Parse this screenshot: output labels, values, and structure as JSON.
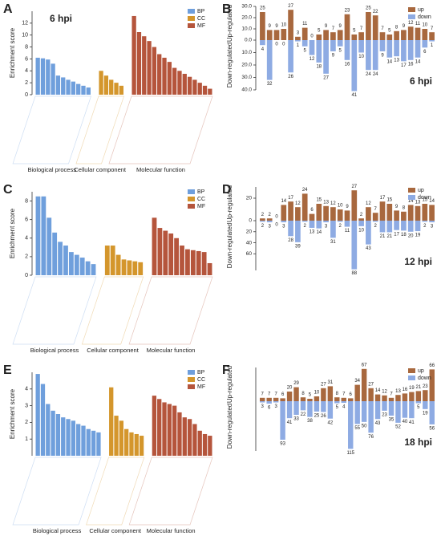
{
  "chart_data": [
    {
      "type": "enrichment",
      "panel": "A",
      "title": "6 hpi",
      "ylabel": "Enrichment score",
      "ylim": [
        0,
        14
      ],
      "yticks": [
        0,
        2,
        4,
        6,
        8,
        10,
        12
      ],
      "groups": [
        {
          "name": "BP",
          "label": "Biological process",
          "color": "#6f9fdc",
          "values": [
            6.2,
            6.1,
            5.9,
            5.2,
            3.2,
            2.9,
            2.5,
            2.2,
            1.8,
            1.5,
            1.2
          ]
        },
        {
          "name": "CC",
          "label": "Cellular component",
          "color": "#d4962c",
          "values": [
            4.0,
            3.2,
            2.5,
            2.0,
            1.5
          ]
        },
        {
          "name": "MF",
          "label": "Molecular function",
          "color": "#b5553c",
          "values": [
            13.2,
            10.5,
            9.8,
            9.0,
            8.0,
            6.8,
            6.2,
            5.5,
            4.5,
            4.0,
            3.5,
            3.0,
            2.5,
            2.0,
            1.5,
            1.0
          ]
        }
      ]
    },
    {
      "type": "updown",
      "panel": "B",
      "title": "6 hpi",
      "up_label": "Up-regulated",
      "down_label": "Down-regulated",
      "series": [
        {
          "name": "up",
          "color": "#a8683e",
          "ylim": [
            0,
            30
          ],
          "yticks": [
            {
              "value": 0,
              "label": "0.0"
            },
            {
              "value": 10,
              "label": "10.0"
            },
            {
              "value": 20,
              "label": "20.0"
            },
            {
              "value": 30,
              "label": "30.0"
            }
          ],
          "values": [
            25,
            9,
            9,
            10,
            27,
            3,
            11,
            0,
            5,
            9,
            7,
            9,
            23,
            5,
            7,
            25,
            22,
            7,
            5,
            8,
            9,
            12,
            11,
            10,
            7
          ]
        },
        {
          "name": "down",
          "color": "#8eabe3",
          "ylim": [
            0,
            40
          ],
          "yticks": [
            {
              "value": 10,
              "label": "10.0"
            },
            {
              "value": 20,
              "label": "20.0"
            },
            {
              "value": 30,
              "label": "30.0"
            },
            {
              "value": 40,
              "label": "40.0"
            }
          ],
          "values": [
            4,
            32,
            0,
            0,
            26,
            1,
            5,
            12,
            18,
            27,
            9,
            5,
            16,
            41,
            10,
            24,
            24,
            9,
            14,
            13,
            17,
            16,
            14,
            6,
            1
          ]
        }
      ]
    },
    {
      "type": "enrichment",
      "panel": "C",
      "ylabel": "Enrichment score",
      "ylim": [
        0,
        9
      ],
      "yticks": [
        0,
        2,
        4,
        6,
        8
      ],
      "groups": [
        {
          "name": "BP",
          "label": "Biological process",
          "color": "#6f9fdc",
          "values": [
            8.5,
            8.5,
            6.2,
            4.6,
            3.6,
            3.2,
            2.5,
            2.2,
            1.9,
            1.5,
            1.2
          ]
        },
        {
          "name": "CC",
          "label": "Cellular component",
          "color": "#d4962c",
          "values": [
            3.2,
            3.2,
            2.2,
            1.7,
            1.6,
            1.5,
            1.4
          ]
        },
        {
          "name": "MF",
          "label": "Molecular function",
          "color": "#b5553c",
          "values": [
            6.2,
            5.1,
            4.8,
            4.5,
            4.0,
            3.2,
            2.8,
            2.7,
            2.6,
            2.5,
            1.3
          ]
        }
      ]
    },
    {
      "type": "updown",
      "panel": "D",
      "title": "12 hpi",
      "up_label": "Up-regulated",
      "down_label": "Down-regulated",
      "series": [
        {
          "name": "up",
          "color": "#a8683e",
          "ylim": [
            0,
            30
          ],
          "yticks": [
            0,
            20
          ],
          "values": [
            2,
            2,
            0,
            14,
            17,
            12,
            24,
            6,
            15,
            13,
            12,
            10,
            9,
            27,
            2,
            12,
            7,
            17,
            15,
            9,
            8,
            14,
            13,
            15,
            14
          ]
        },
        {
          "name": "down",
          "color": "#8eabe3",
          "ylim": [
            0,
            90
          ],
          "yticks": [
            20,
            40,
            60
          ],
          "values": [
            2,
            3,
            0,
            3,
            28,
            39,
            2,
            13,
            14,
            3,
            31,
            2,
            11,
            88,
            10,
            43,
            2,
            21,
            21,
            17,
            18,
            20,
            19,
            2,
            3
          ]
        }
      ]
    },
    {
      "type": "enrichment",
      "panel": "E",
      "ylabel": "Enrichment score",
      "ylim": [
        0,
        5
      ],
      "yticks": [
        1,
        2,
        3,
        4
      ],
      "groups": [
        {
          "name": "BP",
          "label": "Biological process",
          "color": "#6f9fdc",
          "values": [
            4.9,
            4.3,
            3.1,
            2.7,
            2.5,
            2.3,
            2.2,
            2.1,
            1.9,
            1.8,
            1.6,
            1.5,
            1.4
          ]
        },
        {
          "name": "CC",
          "label": "Cellular component",
          "color": "#d4962c",
          "values": [
            4.1,
            2.4,
            2.1,
            1.6,
            1.4,
            1.3,
            1.2
          ]
        },
        {
          "name": "MF",
          "label": "Molecular function",
          "color": "#b5553c",
          "values": [
            3.6,
            3.4,
            3.2,
            3.1,
            3.0,
            2.6,
            2.3,
            2.2,
            1.9,
            1.5,
            1.3,
            1.2
          ]
        }
      ]
    },
    {
      "type": "updown",
      "panel": "F",
      "title": "18 hpi",
      "up_label": "Up-regulated",
      "down_label": "Down-regulated",
      "series": [
        {
          "name": "up",
          "color": "#a8683e",
          "ylim": [
            0,
            70
          ],
          "yticks": [],
          "values": [
            7,
            7,
            7,
            6,
            20,
            29,
            8,
            5,
            10,
            27,
            31,
            8,
            7,
            6,
            34,
            67,
            27,
            14,
            12,
            7,
            13,
            16,
            19,
            21,
            23,
            66
          ]
        },
        {
          "name": "down",
          "color": "#8eabe3",
          "ylim": [
            0,
            120
          ],
          "yticks": [],
          "values": [
            3,
            6,
            3,
            93,
            41,
            33,
            22,
            38,
            25,
            26,
            42,
            5,
            4,
            115,
            55,
            50,
            76,
            43,
            23,
            35,
            52,
            40,
            41,
            5,
            19,
            56
          ]
        }
      ]
    }
  ]
}
